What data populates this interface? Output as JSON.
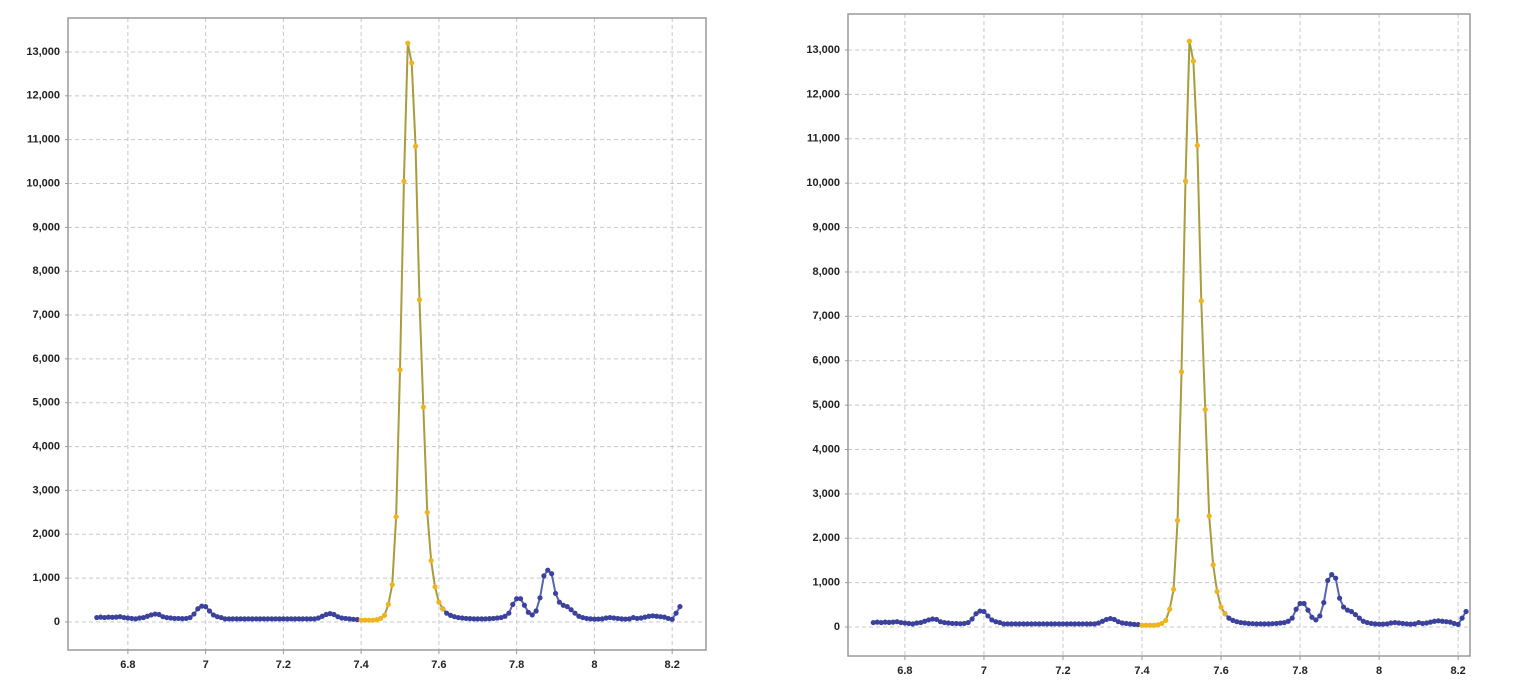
{
  "chart_data": [
    {
      "type": "line",
      "xlim": [
        6.646,
        8.287
      ],
      "ylim": [
        -640,
        13775
      ],
      "xticks": [
        6.8,
        7,
        7.2,
        7.4,
        7.6,
        7.8,
        8,
        8.2
      ],
      "yticks": [
        0,
        {
          "value": 1000,
          "label": "1,000"
        },
        {
          "value": 2000,
          "label": "2,000"
        },
        {
          "value": 3000,
          "label": "3,000"
        },
        {
          "value": 4000,
          "label": "4,000"
        },
        {
          "value": 5000,
          "label": "5,000"
        },
        {
          "value": 6000,
          "label": "6,000"
        },
        {
          "value": 7000,
          "label": "7,000"
        },
        {
          "value": 8000,
          "label": "8,000"
        },
        {
          "value": 9000,
          "label": "9,000"
        },
        {
          "value": 10000,
          "label": "10,000"
        },
        {
          "value": 11000,
          "label": "11,000"
        },
        {
          "value": 12000,
          "label": "12,000"
        },
        {
          "value": 13000,
          "label": "13,000"
        }
      ],
      "grid": true,
      "series": [
        {
          "color": "#3b419c",
          "line_color": "#5a63b3",
          "x": [
            6.72,
            6.73,
            6.74,
            6.75,
            6.76,
            6.77,
            6.78,
            6.79,
            6.8,
            6.81,
            6.82,
            6.83,
            6.84,
            6.85,
            6.86,
            6.87,
            6.88,
            6.89,
            6.9,
            6.91,
            6.92,
            6.93,
            6.94,
            6.95,
            6.96,
            6.97,
            6.98,
            6.99,
            7.0,
            7.01,
            7.02,
            7.03,
            7.04,
            7.05,
            7.06,
            7.07,
            7.08,
            7.09,
            7.1,
            7.11,
            7.12,
            7.13,
            7.14,
            7.15,
            7.16,
            7.17,
            7.18,
            7.19,
            7.2,
            7.21,
            7.22,
            7.23,
            7.24,
            7.25,
            7.26,
            7.27,
            7.28,
            7.29,
            7.3,
            7.31,
            7.32,
            7.33,
            7.34,
            7.35,
            7.36,
            7.37,
            7.38,
            7.39,
            7.4,
            7.61,
            7.62,
            7.63,
            7.64,
            7.65,
            7.66,
            7.67,
            7.68,
            7.69,
            7.7,
            7.71,
            7.72,
            7.73,
            7.74,
            7.75,
            7.76,
            7.77,
            7.78,
            7.79,
            7.8,
            7.81,
            7.82,
            7.83,
            7.84,
            7.85,
            7.86,
            7.87,
            7.88,
            7.89,
            7.9,
            7.91,
            7.92,
            7.93,
            7.94,
            7.95,
            7.96,
            7.97,
            7.98,
            7.99,
            8.0,
            8.01,
            8.02,
            8.03,
            8.04,
            8.05,
            8.06,
            8.07,
            8.08,
            8.09,
            8.1,
            8.11,
            8.12,
            8.13,
            8.14,
            8.15,
            8.16,
            8.17,
            8.18,
            8.19,
            8.2,
            8.21,
            8.22
          ],
          "values": [
            100,
            110,
            100,
            110,
            105,
            110,
            120,
            100,
            90,
            80,
            70,
            90,
            100,
            130,
            160,
            180,
            170,
            120,
            100,
            90,
            80,
            80,
            75,
            80,
            100,
            180,
            300,
            360,
            350,
            250,
            160,
            120,
            100,
            70,
            70,
            70,
            70,
            70,
            70,
            70,
            70,
            70,
            70,
            70,
            70,
            70,
            70,
            70,
            70,
            70,
            70,
            70,
            70,
            70,
            70,
            70,
            70,
            90,
            130,
            170,
            190,
            170,
            120,
            90,
            80,
            70,
            60,
            55,
            null,
            300,
            200,
            150,
            120,
            100,
            90,
            80,
            75,
            70,
            70,
            70,
            70,
            75,
            80,
            90,
            100,
            130,
            200,
            400,
            530,
            530,
            380,
            220,
            160,
            250,
            550,
            1050,
            1180,
            1100,
            650,
            450,
            380,
            350,
            280,
            200,
            130,
            100,
            80,
            70,
            65,
            65,
            70,
            90,
            100,
            90,
            80,
            70,
            65,
            70,
            100,
            80,
            90,
            110,
            130,
            140,
            130,
            120,
            110,
            80,
            60,
            200,
            350
          ]
        },
        {
          "color": "#f0b41e",
          "line_color": "#a89c3c",
          "x": [
            7.4,
            7.41,
            7.42,
            7.43,
            7.44,
            7.45,
            7.46,
            7.47,
            7.48,
            7.49,
            7.5,
            7.51,
            7.52,
            7.53,
            7.54,
            7.55,
            7.56,
            7.57,
            7.58,
            7.59,
            7.6,
            7.61
          ],
          "values": [
            40,
            40,
            40,
            40,
            50,
            80,
            150,
            400,
            850,
            2400,
            5750,
            10050,
            13200,
            12750,
            10850,
            7350,
            4900,
            2500,
            1400,
            800,
            450,
            300
          ]
        }
      ]
    },
    {
      "type": "line",
      "xlim": [
        6.656,
        8.23
      ],
      "ylim": [
        -653,
        13812
      ],
      "xticks": [
        6.8,
        7,
        7.2,
        7.4,
        7.6,
        7.8,
        8,
        8.2
      ],
      "yticks": [
        0,
        {
          "value": 1000,
          "label": "1,000"
        },
        {
          "value": 2000,
          "label": "2,000"
        },
        {
          "value": 3000,
          "label": "3,000"
        },
        {
          "value": 4000,
          "label": "4,000"
        },
        {
          "value": 5000,
          "label": "5,000"
        },
        {
          "value": 6000,
          "label": "6,000"
        },
        {
          "value": 7000,
          "label": "7,000"
        },
        {
          "value": 8000,
          "label": "8,000"
        },
        {
          "value": 9000,
          "label": "9,000"
        },
        {
          "value": 10000,
          "label": "10,000"
        },
        {
          "value": 11000,
          "label": "11,000"
        },
        {
          "value": 12000,
          "label": "12,000"
        },
        {
          "value": 13000,
          "label": "13,000"
        }
      ],
      "grid": true,
      "series": [
        {
          "color": "#3b419c",
          "line_color": "#5a63b3",
          "x": [
            6.72,
            6.73,
            6.74,
            6.75,
            6.76,
            6.77,
            6.78,
            6.79,
            6.8,
            6.81,
            6.82,
            6.83,
            6.84,
            6.85,
            6.86,
            6.87,
            6.88,
            6.89,
            6.9,
            6.91,
            6.92,
            6.93,
            6.94,
            6.95,
            6.96,
            6.97,
            6.98,
            6.99,
            7.0,
            7.01,
            7.02,
            7.03,
            7.04,
            7.05,
            7.06,
            7.07,
            7.08,
            7.09,
            7.1,
            7.11,
            7.12,
            7.13,
            7.14,
            7.15,
            7.16,
            7.17,
            7.18,
            7.19,
            7.2,
            7.21,
            7.22,
            7.23,
            7.24,
            7.25,
            7.26,
            7.27,
            7.28,
            7.29,
            7.3,
            7.31,
            7.32,
            7.33,
            7.34,
            7.35,
            7.36,
            7.37,
            7.38,
            7.39,
            7.4,
            7.61,
            7.62,
            7.63,
            7.64,
            7.65,
            7.66,
            7.67,
            7.68,
            7.69,
            7.7,
            7.71,
            7.72,
            7.73,
            7.74,
            7.75,
            7.76,
            7.77,
            7.78,
            7.79,
            7.8,
            7.81,
            7.82,
            7.83,
            7.84,
            7.85,
            7.86,
            7.87,
            7.88,
            7.89,
            7.9,
            7.91,
            7.92,
            7.93,
            7.94,
            7.95,
            7.96,
            7.97,
            7.98,
            7.99,
            8.0,
            8.01,
            8.02,
            8.03,
            8.04,
            8.05,
            8.06,
            8.07,
            8.08,
            8.09,
            8.1,
            8.11,
            8.12,
            8.13,
            8.14,
            8.15,
            8.16,
            8.17,
            8.18,
            8.19,
            8.2,
            8.21,
            8.22
          ],
          "values": [
            100,
            110,
            100,
            110,
            105,
            110,
            120,
            100,
            90,
            80,
            70,
            90,
            100,
            130,
            160,
            180,
            170,
            120,
            100,
            90,
            80,
            80,
            75,
            80,
            100,
            180,
            300,
            360,
            350,
            250,
            160,
            120,
            100,
            70,
            70,
            70,
            70,
            70,
            70,
            70,
            70,
            70,
            70,
            70,
            70,
            70,
            70,
            70,
            70,
            70,
            70,
            70,
            70,
            70,
            70,
            70,
            70,
            90,
            130,
            170,
            190,
            170,
            120,
            90,
            80,
            70,
            60,
            55,
            null,
            300,
            200,
            150,
            120,
            100,
            90,
            80,
            75,
            70,
            70,
            70,
            70,
            75,
            80,
            90,
            100,
            130,
            200,
            400,
            530,
            530,
            380,
            220,
            160,
            250,
            550,
            1050,
            1180,
            1100,
            650,
            450,
            380,
            350,
            280,
            200,
            130,
            100,
            80,
            70,
            65,
            65,
            70,
            90,
            100,
            90,
            80,
            70,
            65,
            70,
            100,
            80,
            90,
            110,
            130,
            140,
            130,
            120,
            110,
            80,
            60,
            200,
            350
          ]
        },
        {
          "color": "#f0b41e",
          "line_color": "#a89c3c",
          "x": [
            7.4,
            7.41,
            7.42,
            7.43,
            7.44,
            7.45,
            7.46,
            7.47,
            7.48,
            7.49,
            7.5,
            7.51,
            7.52,
            7.53,
            7.54,
            7.55,
            7.56,
            7.57,
            7.58,
            7.59,
            7.6,
            7.61
          ],
          "values": [
            40,
            40,
            40,
            40,
            50,
            80,
            150,
            400,
            850,
            2400,
            5750,
            10050,
            13200,
            12750,
            10850,
            7350,
            4900,
            2500,
            1400,
            800,
            450,
            300
          ]
        }
      ]
    }
  ]
}
